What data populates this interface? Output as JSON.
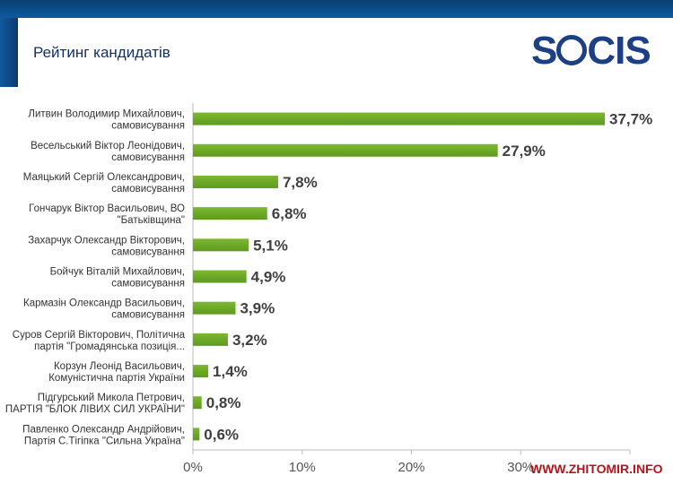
{
  "header": {
    "title": "Рейтинг кандидатів",
    "logo": "SOCIS"
  },
  "watermark": "WWW.ZHITOMIR.INFO",
  "colors": {
    "bar": "#7cb82f",
    "bar_dark": "#5e9a1f",
    "header": "#0f5aa0"
  },
  "chart_data": {
    "type": "bar",
    "orientation": "horizontal",
    "categories": [
      [
        "Литвин Володимир Михайлович,",
        "самовисування"
      ],
      [
        "Весельський Віктор Леонідович,",
        "самовисування"
      ],
      [
        "Маяцький Сергій Олександрович,",
        "самовисування"
      ],
      [
        "Гончарук Віктор Васильович, ВО",
        "\"Батьківщина\""
      ],
      [
        "Захарчук Олександр Вікторович,",
        "самовисування"
      ],
      [
        "Бойчук Віталій Михайлович,",
        "самовисування"
      ],
      [
        "Кармазін Олександр Васильович,",
        "самовисування"
      ],
      [
        "Суров Сергій Вікторович, Політична",
        "партія \"Громадянська позиція..."
      ],
      [
        "Корзун Леонід Васильович,",
        "Комуністична партія України"
      ],
      [
        "Підгурський Микола Петрович,",
        "ПАРТІЯ \"БЛОК ЛІВИХ СИЛ УКРАЇНИ\""
      ],
      [
        "Павленко Олександр Андрійович,",
        "Партія С.Тігіпка \"Сильна Україна\""
      ]
    ],
    "values": [
      37.7,
      27.9,
      7.8,
      6.8,
      5.1,
      4.9,
      3.9,
      3.2,
      1.4,
      0.8,
      0.6
    ],
    "data_labels": [
      "37,7%",
      "27,9%",
      "7,8%",
      "6,8%",
      "5,1%",
      "4,9%",
      "3,9%",
      "3,2%",
      "1,4%",
      "0,8%",
      "0,6%"
    ],
    "xlim": [
      0,
      40
    ],
    "xticks": [
      0,
      10,
      20,
      30,
      40
    ],
    "xtick_labels": [
      "0%",
      "10%",
      "20%",
      "30%",
      ""
    ],
    "grid": false
  }
}
